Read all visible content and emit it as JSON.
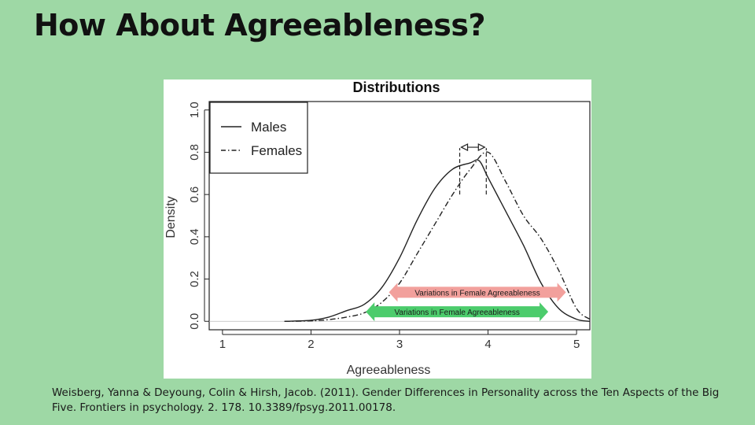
{
  "slide": {
    "title": "How About Agreeableness?",
    "citation": "Weisberg, Yanna & Deyoung, Colin & Hirsh, Jacob. (2011). Gender Differences in Personality across the Ten Aspects of the Big Five. Frontiers in psychology. 2. 178. 10.3389/fpsyg.2011.00178.",
    "background_color": "#9ed8a5"
  },
  "chart_data": {
    "type": "line",
    "title": "Distributions",
    "xlabel": "Agreeableness",
    "ylabel": "Density",
    "xlim": [
      0.85,
      5.15
    ],
    "ylim": [
      -0.04,
      1.04
    ],
    "x_ticks": [
      1,
      2,
      3,
      4,
      5
    ],
    "y_ticks": [
      0.0,
      0.2,
      0.4,
      0.6,
      0.8,
      1.0
    ],
    "x_tick_labels": [
      "1",
      "2",
      "3",
      "4",
      "5"
    ],
    "y_tick_labels": [
      "0.0",
      "0.2",
      "0.4",
      "0.6",
      "0.8",
      "1.0"
    ],
    "legend": {
      "placement": "top-left",
      "entries": [
        {
          "label": "Males",
          "style": "solid"
        },
        {
          "label": "Females",
          "style": "dash-dot"
        }
      ]
    },
    "grid": false,
    "series": [
      {
        "name": "Males",
        "style": "solid",
        "points": [
          [
            1.7,
            0.0
          ],
          [
            2.0,
            0.005
          ],
          [
            2.2,
            0.02
          ],
          [
            2.4,
            0.05
          ],
          [
            2.6,
            0.08
          ],
          [
            2.8,
            0.16
          ],
          [
            3.0,
            0.3
          ],
          [
            3.2,
            0.48
          ],
          [
            3.4,
            0.63
          ],
          [
            3.6,
            0.72
          ],
          [
            3.8,
            0.75
          ],
          [
            3.9,
            0.76
          ],
          [
            4.0,
            0.68
          ],
          [
            4.2,
            0.52
          ],
          [
            4.4,
            0.36
          ],
          [
            4.6,
            0.18
          ],
          [
            4.8,
            0.06
          ],
          [
            5.0,
            0.01
          ],
          [
            5.15,
            0.0
          ]
        ]
      },
      {
        "name": "Females",
        "style": "dash-dot",
        "points": [
          [
            1.7,
            0.0
          ],
          [
            2.0,
            0.002
          ],
          [
            2.2,
            0.008
          ],
          [
            2.4,
            0.02
          ],
          [
            2.6,
            0.04
          ],
          [
            2.8,
            0.09
          ],
          [
            3.0,
            0.18
          ],
          [
            3.2,
            0.32
          ],
          [
            3.4,
            0.46
          ],
          [
            3.6,
            0.6
          ],
          [
            3.8,
            0.72
          ],
          [
            4.0,
            0.8
          ],
          [
            4.2,
            0.66
          ],
          [
            4.4,
            0.5
          ],
          [
            4.6,
            0.39
          ],
          [
            4.8,
            0.24
          ],
          [
            5.0,
            0.06
          ],
          [
            5.15,
            0.01
          ]
        ]
      }
    ],
    "peak_markers": {
      "x": [
        3.68,
        3.98
      ],
      "y_range": [
        0.6,
        0.82
      ]
    },
    "annotations": [
      {
        "text": "Variations in Female Agreeableness",
        "x_range": [
          2.88,
          4.88
        ],
        "y": 0.1,
        "color": "#f2a09c"
      },
      {
        "text": "Variations in Female Agreeableness",
        "x_range": [
          2.62,
          4.68
        ],
        "y": 0.008,
        "color": "#4ccc6c"
      }
    ]
  }
}
